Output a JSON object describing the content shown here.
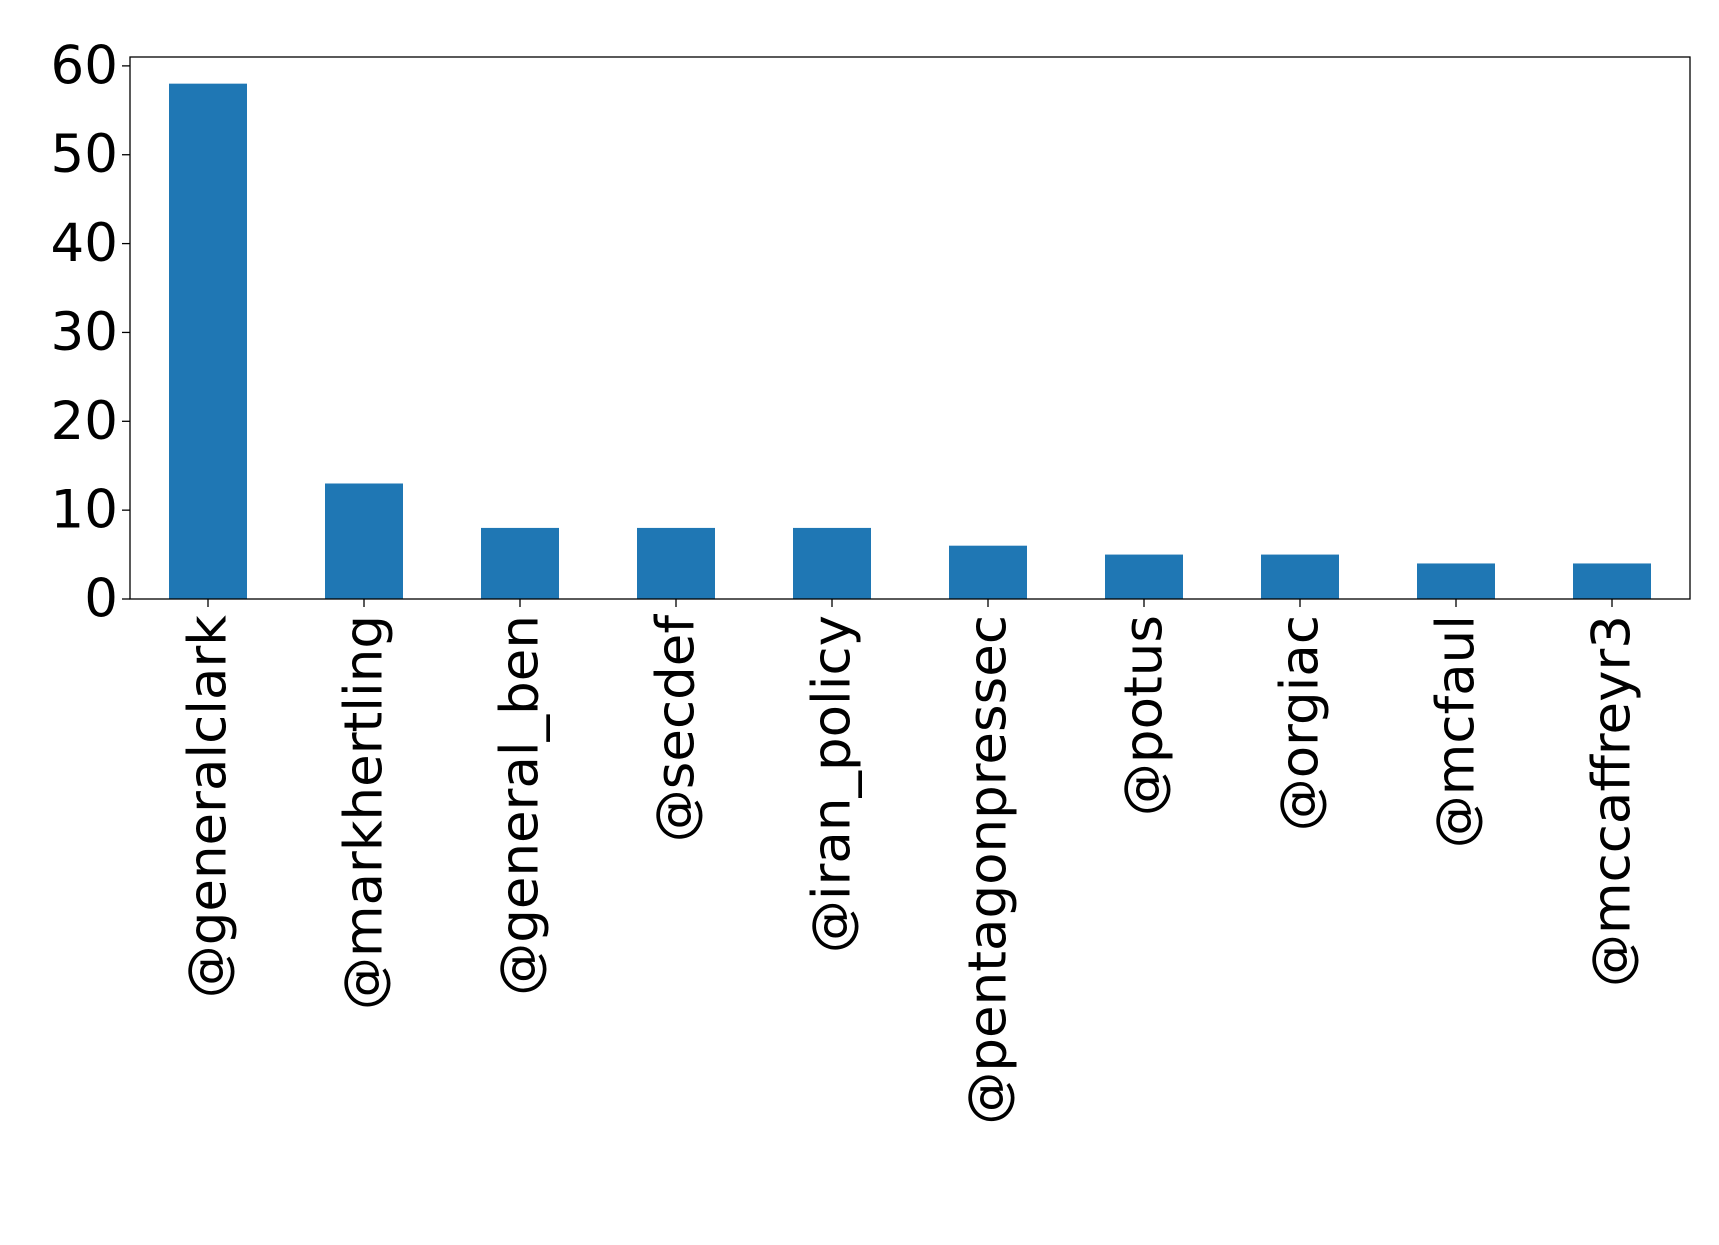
{
  "chart_data": {
    "type": "bar",
    "categories": [
      "@generalclark",
      "@markhertling",
      "@general_ben",
      "@secdef",
      "@iran_policy",
      "@pentagonpressec",
      "@potus",
      "@orgiac",
      "@mcfaul",
      "@mccaffreyr3"
    ],
    "values": [
      58,
      13,
      8,
      8,
      8,
      6,
      5,
      5,
      4,
      4
    ],
    "ylim": [
      0,
      61
    ],
    "yticks": [
      0,
      10,
      20,
      30,
      40,
      50,
      60
    ],
    "title": "",
    "xlabel": "",
    "ylabel": "",
    "grid": false,
    "colors": {
      "bar": "#1f77b4",
      "axis": "#000000",
      "background": "#ffffff"
    }
  }
}
